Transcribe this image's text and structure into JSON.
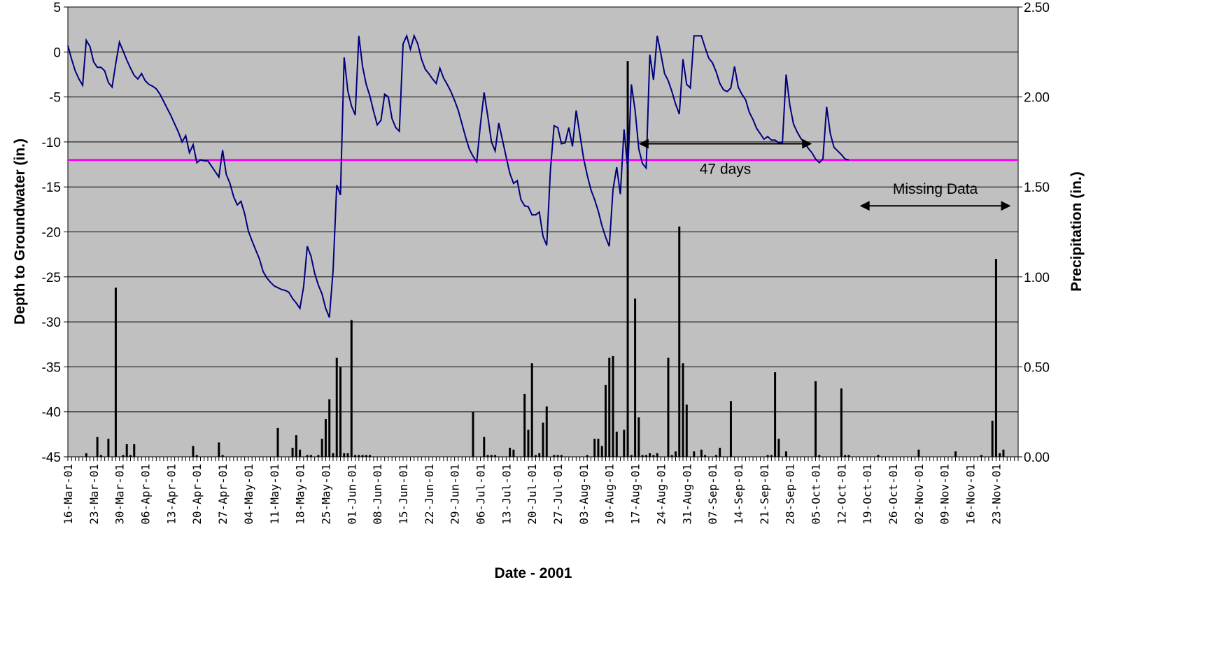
{
  "chart_data": {
    "type": "line",
    "secondary_type": "bar",
    "xlabel": "Date - 2001",
    "ylabel_left": "Depth to Groundwater (in.)",
    "ylabel_right": "Precipitation (in.)",
    "x_range": [
      "2001-03-16",
      "2001-11-29"
    ],
    "ylim_left": [
      -45,
      5
    ],
    "ylim_right": [
      0,
      2.5
    ],
    "y_ticks_left": [
      "5",
      "0",
      "-5",
      "-10",
      "-15",
      "-20",
      "-25",
      "-30",
      "-35",
      "-40",
      "-45"
    ],
    "y_ticks_right": [
      "2.50",
      "2.00",
      "1.50",
      "1.00",
      "0.50",
      "0.00"
    ],
    "x_tick_labels": [
      "16-Mar-01",
      "23-Mar-01",
      "30-Mar-01",
      "06-Apr-01",
      "13-Apr-01",
      "20-Apr-01",
      "27-Apr-01",
      "04-May-01",
      "11-May-01",
      "18-May-01",
      "25-May-01",
      "01-Jun-01",
      "08-Jun-01",
      "15-Jun-01",
      "22-Jun-01",
      "29-Jun-01",
      "06-Jul-01",
      "13-Jul-01",
      "20-Jul-01",
      "27-Jul-01",
      "03-Aug-01",
      "10-Aug-01",
      "17-Aug-01",
      "24-Aug-01",
      "31-Aug-01",
      "07-Sep-01",
      "14-Sep-01",
      "21-Sep-01",
      "28-Sep-01",
      "05-Oct-01",
      "12-Oct-01",
      "19-Oct-01",
      "26-Oct-01",
      "02-Nov-01",
      "09-Nov-01",
      "16-Nov-01",
      "23-Nov-01"
    ],
    "grid": true,
    "colors": {
      "plot_bg": "#c0c0c0",
      "groundwater_line": "#000080",
      "threshold_line": "#ff00ff",
      "bars": "#000000",
      "grid": "#000000"
    },
    "threshold_depth": -12,
    "groundwater": {
      "x": [
        "2001-03-16",
        "2001-03-17",
        "2001-03-18",
        "2001-03-19",
        "2001-03-20",
        "2001-03-21",
        "2001-03-22",
        "2001-03-23",
        "2001-03-24",
        "2001-03-25",
        "2001-03-26",
        "2001-03-27",
        "2001-03-28",
        "2001-03-29",
        "2001-03-30",
        "2001-03-31",
        "2001-04-01",
        "2001-04-02",
        "2001-04-03",
        "2001-04-04",
        "2001-04-05",
        "2001-04-06",
        "2001-04-07",
        "2001-04-08",
        "2001-04-09",
        "2001-04-10",
        "2001-04-11",
        "2001-04-12",
        "2001-04-13",
        "2001-04-14",
        "2001-04-15",
        "2001-04-16",
        "2001-04-17",
        "2001-04-18",
        "2001-04-19",
        "2001-04-20",
        "2001-04-21",
        "2001-04-22",
        "2001-04-23",
        "2001-04-24",
        "2001-04-25",
        "2001-04-26",
        "2001-04-27",
        "2001-04-28",
        "2001-04-29",
        "2001-04-30",
        "2001-05-01",
        "2001-05-02",
        "2001-05-03",
        "2001-05-04",
        "2001-05-05",
        "2001-05-06",
        "2001-05-07",
        "2001-05-08",
        "2001-05-09",
        "2001-05-10",
        "2001-05-11",
        "2001-05-12",
        "2001-05-13",
        "2001-05-14",
        "2001-05-15",
        "2001-05-16",
        "2001-05-17",
        "2001-05-18",
        "2001-05-19",
        "2001-05-20",
        "2001-05-21",
        "2001-05-22",
        "2001-05-23",
        "2001-05-24",
        "2001-05-25",
        "2001-05-26",
        "2001-05-27",
        "2001-05-28",
        "2001-05-29",
        "2001-05-30",
        "2001-05-31",
        "2001-06-01",
        "2001-06-02",
        "2001-06-03",
        "2001-06-04",
        "2001-06-05",
        "2001-06-06",
        "2001-06-07",
        "2001-06-08",
        "2001-06-09",
        "2001-06-10",
        "2001-06-11",
        "2001-06-12",
        "2001-06-13",
        "2001-06-14",
        "2001-06-15",
        "2001-06-16",
        "2001-06-17",
        "2001-06-18",
        "2001-06-19",
        "2001-06-20",
        "2001-06-21",
        "2001-06-22",
        "2001-06-23",
        "2001-06-24",
        "2001-06-25",
        "2001-06-26",
        "2001-06-27",
        "2001-06-28",
        "2001-06-29",
        "2001-06-30",
        "2001-07-01",
        "2001-07-02",
        "2001-07-03",
        "2001-07-04",
        "2001-07-05",
        "2001-07-06",
        "2001-07-07",
        "2001-07-08",
        "2001-07-09",
        "2001-07-10",
        "2001-07-11",
        "2001-07-12",
        "2001-07-13",
        "2001-07-14",
        "2001-07-15",
        "2001-07-16",
        "2001-07-17",
        "2001-07-18",
        "2001-07-19",
        "2001-07-20",
        "2001-07-21",
        "2001-07-22",
        "2001-07-23",
        "2001-07-24",
        "2001-07-25",
        "2001-07-26",
        "2001-07-27",
        "2001-07-28",
        "2001-07-29",
        "2001-07-30",
        "2001-07-31",
        "2001-08-01",
        "2001-08-02",
        "2001-08-03",
        "2001-08-04",
        "2001-08-05",
        "2001-08-06",
        "2001-08-07",
        "2001-08-08",
        "2001-08-09",
        "2001-08-10",
        "2001-08-11",
        "2001-08-12",
        "2001-08-13",
        "2001-08-14",
        "2001-08-15",
        "2001-08-16",
        "2001-08-17",
        "2001-08-18",
        "2001-08-19",
        "2001-08-20",
        "2001-08-21",
        "2001-08-22",
        "2001-08-23",
        "2001-08-24",
        "2001-08-25",
        "2001-08-26",
        "2001-08-27",
        "2001-08-28",
        "2001-08-29",
        "2001-08-30",
        "2001-08-31",
        "2001-09-01",
        "2001-09-02",
        "2001-09-03",
        "2001-09-04",
        "2001-09-05",
        "2001-09-06",
        "2001-09-07",
        "2001-09-08",
        "2001-09-09",
        "2001-09-10",
        "2001-09-11",
        "2001-09-12",
        "2001-09-13",
        "2001-09-14",
        "2001-09-15",
        "2001-09-16",
        "2001-09-17",
        "2001-09-18",
        "2001-09-19",
        "2001-09-20",
        "2001-09-21",
        "2001-09-22",
        "2001-09-23",
        "2001-09-24",
        "2001-09-25",
        "2001-09-26",
        "2001-09-27",
        "2001-09-28",
        "2001-09-29",
        "2001-09-30",
        "2001-10-01",
        "2001-10-02",
        "2001-10-03",
        "2001-10-04",
        "2001-10-05",
        "2001-10-06",
        "2001-10-07",
        "2001-10-08",
        "2001-10-09",
        "2001-10-10",
        "2001-10-11",
        "2001-10-12",
        "2001-10-13",
        "2001-10-14"
      ],
      "values": [
        0.7,
        -0.8,
        -2.1,
        -3.0,
        -3.7,
        1.3,
        0.6,
        -1.1,
        -1.7,
        -1.7,
        -2.1,
        -3.4,
        -3.9,
        -1.3,
        1.1,
        0.1,
        -0.9,
        -1.8,
        -2.6,
        -3.0,
        -2.4,
        -3.2,
        -3.6,
        -3.8,
        -4.1,
        -4.7,
        -5.5,
        -6.3,
        -7.1,
        -8.0,
        -8.9,
        -10.0,
        -9.3,
        -11.2,
        -10.3,
        -12.3,
        -12.0,
        -12.1,
        -12.1,
        -12.7,
        -13.3,
        -13.9,
        -10.9,
        -13.6,
        -14.6,
        -16.1,
        -17.0,
        -16.6,
        -18.0,
        -19.9,
        -21.0,
        -22.0,
        -23.0,
        -24.4,
        -25.1,
        -25.6,
        -26.0,
        -26.2,
        -26.4,
        -26.5,
        -26.7,
        -27.4,
        -27.9,
        -28.5,
        -26.1,
        -21.6,
        -22.7,
        -24.6,
        -25.9,
        -26.9,
        -28.5,
        -29.5,
        -24.3,
        -14.8,
        -15.9,
        -0.6,
        -4.3,
        -6.0,
        -7.0,
        1.8,
        -1.6,
        -3.6,
        -4.9,
        -6.6,
        -8.1,
        -7.6,
        -4.7,
        -5.0,
        -7.4,
        -8.4,
        -8.8,
        0.9,
        1.8,
        0.3,
        1.8,
        0.9,
        -0.8,
        -1.9,
        -2.4,
        -3.0,
        -3.5,
        -1.8,
        -2.9,
        -3.6,
        -4.4,
        -5.4,
        -6.5,
        -8.0,
        -9.5,
        -10.8,
        -11.6,
        -12.2,
        -8.1,
        -4.5,
        -7.1,
        -10.0,
        -11.0,
        -7.9,
        -9.8,
        -11.7,
        -13.5,
        -14.6,
        -14.3,
        -16.4,
        -17.1,
        -17.2,
        -18.1,
        -18.1,
        -17.8,
        -20.5,
        -21.5,
        -13.2,
        -8.2,
        -8.4,
        -10.2,
        -10.1,
        -8.4,
        -10.5,
        -6.5,
        -9.1,
        -11.8,
        -13.7,
        -15.3,
        -16.4,
        -17.7,
        -19.3,
        -20.6,
        -21.6,
        -15.3,
        -12.8,
        -15.8,
        -8.6,
        -13.1,
        -3.6,
        -6.5,
        -10.8,
        -12.4,
        -12.9,
        -0.3,
        -3.1,
        1.8,
        -0.2,
        -2.4,
        -3.2,
        -4.4,
        -5.8,
        -6.9,
        -0.8,
        -3.6,
        -4.0,
        1.8,
        1.8,
        1.8,
        0.5,
        -0.7,
        -1.2,
        -2.2,
        -3.5,
        -4.2,
        -4.4,
        -4.0,
        -1.6,
        -3.9,
        -4.7,
        -5.3,
        -6.7,
        -7.5,
        -8.5,
        -9.1,
        -9.7,
        -9.4,
        -9.8,
        -9.8,
        -10.1,
        -10.1,
        -2.5,
        -5.9,
        -8.0,
        -8.9,
        -9.6,
        -10.1,
        -10.7,
        -11.2,
        -11.9,
        -12.3,
        -11.9,
        -6.1,
        -9.1,
        -10.6,
        -11.0,
        -11.4,
        -11.9,
        -12.0
      ]
    },
    "precipitation": {
      "x": [
        "2001-03-21",
        "2001-03-24",
        "2001-03-25",
        "2001-03-27",
        "2001-03-29",
        "2001-03-31",
        "2001-04-01",
        "2001-04-02",
        "2001-04-03",
        "2001-04-19",
        "2001-04-20",
        "2001-04-26",
        "2001-04-27",
        "2001-05-12",
        "2001-05-16",
        "2001-05-17",
        "2001-05-18",
        "2001-05-20",
        "2001-05-21",
        "2001-05-23",
        "2001-05-24",
        "2001-05-25",
        "2001-05-26",
        "2001-05-27",
        "2001-05-28",
        "2001-05-29",
        "2001-05-30",
        "2001-05-31",
        "2001-06-01",
        "2001-06-02",
        "2001-06-03",
        "2001-06-04",
        "2001-06-05",
        "2001-06-06",
        "2001-07-04",
        "2001-07-07",
        "2001-07-08",
        "2001-07-09",
        "2001-07-10",
        "2001-07-14",
        "2001-07-15",
        "2001-07-18",
        "2001-07-19",
        "2001-07-20",
        "2001-07-21",
        "2001-07-22",
        "2001-07-23",
        "2001-07-24",
        "2001-07-26",
        "2001-07-27",
        "2001-07-28",
        "2001-08-04",
        "2001-08-06",
        "2001-08-07",
        "2001-08-08",
        "2001-08-09",
        "2001-08-10",
        "2001-08-11",
        "2001-08-12",
        "2001-08-14",
        "2001-08-15",
        "2001-08-16",
        "2001-08-17",
        "2001-08-18",
        "2001-08-19",
        "2001-08-20",
        "2001-08-21",
        "2001-08-22",
        "2001-08-23",
        "2001-08-26",
        "2001-08-27",
        "2001-08-28",
        "2001-08-29",
        "2001-08-30",
        "2001-08-31",
        "2001-09-02",
        "2001-09-04",
        "2001-09-05",
        "2001-09-08",
        "2001-09-09",
        "2001-09-12",
        "2001-09-22",
        "2001-09-23",
        "2001-09-24",
        "2001-09-25",
        "2001-09-27",
        "2001-10-05",
        "2001-10-06",
        "2001-10-12",
        "2001-10-13",
        "2001-10-14",
        "2001-10-22",
        "2001-11-02",
        "2001-11-12",
        "2001-11-19",
        "2001-11-22",
        "2001-11-23",
        "2001-11-24",
        "2001-11-25"
      ],
      "values": [
        0.02,
        0.11,
        0.01,
        0.1,
        0.94,
        0.01,
        0.07,
        0.01,
        0.07,
        0.06,
        0.01,
        0.08,
        0.01,
        0.16,
        0.05,
        0.12,
        0.04,
        0.01,
        0.01,
        0.01,
        0.1,
        0.21,
        0.32,
        0.02,
        0.55,
        0.5,
        0.02,
        0.02,
        0.76,
        0.01,
        0.01,
        0.01,
        0.01,
        0.01,
        0.25,
        0.11,
        0.01,
        0.01,
        0.01,
        0.05,
        0.04,
        0.35,
        0.15,
        0.52,
        0.01,
        0.02,
        0.19,
        0.28,
        0.01,
        0.01,
        0.01,
        0.01,
        0.1,
        0.1,
        0.06,
        0.4,
        0.55,
        0.56,
        0.14,
        0.15,
        2.2,
        0.01,
        0.88,
        0.22,
        0.01,
        0.01,
        0.02,
        0.01,
        0.02,
        0.55,
        0.01,
        0.03,
        1.28,
        0.52,
        0.29,
        0.03,
        0.04,
        0.01,
        0.01,
        0.05,
        0.31,
        0.01,
        0.01,
        0.47,
        0.1,
        0.03,
        0.42,
        0.01,
        0.38,
        0.01,
        0.01,
        0.01,
        0.04,
        0.03,
        0.01,
        0.2,
        1.1,
        0.02,
        0.04
      ]
    },
    "annotations": [
      {
        "text": "47 days",
        "from": "2001-08-18",
        "to": "2001-10-04",
        "depth": -10.2,
        "label_depth": -13.0
      },
      {
        "text": "Missing Data",
        "from": "2001-10-17",
        "to": "2001-11-27",
        "depth": -17.1,
        "label_depth": -15.2
      }
    ]
  }
}
